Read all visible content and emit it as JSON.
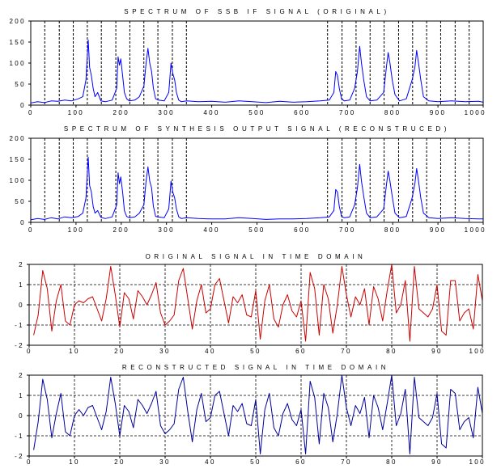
{
  "chart_data": [
    {
      "type": "line",
      "title": "SPECTRUM OF SSB IF SIGNAL (ORIGINAL)",
      "xlim": [
        0,
        1000
      ],
      "ylim": [
        0,
        200
      ],
      "xticks": [
        "0",
        "100",
        "200",
        "300",
        "400",
        "500",
        "600",
        "700",
        "800",
        "900",
        "1000"
      ],
      "yticks": [
        "0",
        "50",
        "100",
        "150",
        "200"
      ],
      "dividers": [
        31,
        63,
        94,
        125,
        156,
        188,
        219,
        250,
        281,
        313,
        344,
        656,
        688,
        719,
        750,
        781,
        813,
        844,
        875,
        906,
        938,
        969
      ],
      "line_color": "#0000ff",
      "x": [
        0,
        15,
        30,
        45,
        60,
        75,
        90,
        105,
        115,
        122,
        127,
        130,
        134,
        138,
        142,
        148,
        155,
        165,
        180,
        190,
        193,
        196,
        199,
        203,
        207,
        212,
        218,
        230,
        240,
        250,
        255,
        259,
        263,
        267,
        271,
        276,
        282,
        295,
        305,
        310,
        314,
        318,
        322,
        327,
        333,
        345,
        370,
        400,
        430,
        460,
        490,
        520,
        550,
        580,
        610,
        640,
        660,
        670,
        674,
        678,
        682,
        687,
        693,
        705,
        716,
        722,
        727,
        731,
        736,
        742,
        750,
        765,
        780,
        786,
        790,
        794,
        799,
        805,
        815,
        830,
        843,
        849,
        853,
        857,
        862,
        868,
        880,
        900,
        930,
        960,
        990,
        1000
      ],
      "y": [
        5,
        8,
        6,
        10,
        9,
        12,
        10,
        15,
        20,
        60,
        155,
        90,
        70,
        40,
        20,
        30,
        10,
        8,
        12,
        40,
        115,
        95,
        110,
        70,
        30,
        15,
        10,
        12,
        20,
        45,
        100,
        135,
        100,
        80,
        40,
        15,
        12,
        10,
        30,
        100,
        75,
        60,
        30,
        12,
        8,
        10,
        8,
        9,
        7,
        10,
        8,
        6,
        9,
        7,
        8,
        10,
        12,
        30,
        80,
        70,
        40,
        15,
        10,
        12,
        40,
        80,
        140,
        100,
        60,
        20,
        10,
        12,
        30,
        90,
        125,
        100,
        60,
        25,
        10,
        15,
        60,
        90,
        130,
        100,
        60,
        20,
        10,
        8,
        10,
        8,
        9,
        7
      ]
    },
    {
      "type": "line",
      "title": "SPECTRUM OF SYNTHESIS OUTPUT SIGNAL (RECONSTRUCED)",
      "xlim": [
        0,
        1000
      ],
      "ylim": [
        0,
        200
      ],
      "xticks": [
        "0",
        "100",
        "200",
        "300",
        "400",
        "500",
        "600",
        "700",
        "800",
        "900",
        "1000"
      ],
      "yticks": [
        "0",
        "50",
        "100",
        "150",
        "200"
      ],
      "dividers": [
        31,
        63,
        94,
        125,
        156,
        188,
        219,
        250,
        281,
        313,
        344,
        656,
        688,
        719,
        750,
        781,
        813,
        844,
        875,
        906,
        938,
        969
      ],
      "line_color": "#0000ff",
      "x": [
        0,
        15,
        30,
        45,
        60,
        75,
        90,
        105,
        115,
        122,
        127,
        130,
        134,
        138,
        142,
        148,
        155,
        165,
        180,
        190,
        193,
        196,
        199,
        203,
        207,
        212,
        218,
        230,
        240,
        250,
        255,
        259,
        263,
        267,
        271,
        276,
        282,
        295,
        305,
        310,
        314,
        318,
        322,
        327,
        333,
        345,
        370,
        400,
        430,
        460,
        490,
        520,
        550,
        580,
        610,
        640,
        660,
        670,
        674,
        678,
        682,
        687,
        693,
        705,
        716,
        722,
        727,
        731,
        736,
        742,
        750,
        765,
        780,
        786,
        790,
        794,
        799,
        805,
        815,
        830,
        843,
        849,
        853,
        857,
        862,
        868,
        880,
        900,
        930,
        960,
        990,
        1000
      ],
      "y": [
        6,
        9,
        7,
        11,
        8,
        13,
        11,
        14,
        22,
        58,
        155,
        88,
        72,
        38,
        22,
        28,
        12,
        9,
        13,
        42,
        118,
        92,
        108,
        72,
        28,
        14,
        11,
        13,
        22,
        42,
        98,
        132,
        98,
        82,
        38,
        14,
        13,
        11,
        32,
        98,
        72,
        58,
        32,
        13,
        9,
        11,
        9,
        8,
        8,
        11,
        9,
        7,
        8,
        8,
        9,
        11,
        13,
        28,
        78,
        72,
        38,
        14,
        11,
        13,
        42,
        82,
        138,
        98,
        62,
        22,
        11,
        13,
        32,
        88,
        122,
        98,
        62,
        22,
        11,
        14,
        58,
        92,
        128,
        98,
        58,
        22,
        11,
        9,
        11,
        9,
        8,
        8
      ]
    },
    {
      "type": "line",
      "title": "ORIGINAL SIGNAL IN TIME DOMAIN",
      "xlim": [
        0,
        100
      ],
      "ylim": [
        -2,
        2
      ],
      "xticks": [
        "0",
        "10",
        "20",
        "30",
        "40",
        "50",
        "60",
        "70",
        "80",
        "90",
        "100"
      ],
      "yticks": [
        "-2",
        "-1",
        "0",
        "1",
        "2"
      ],
      "grid": true,
      "line_color": "#cc0000",
      "x": [
        1,
        2,
        3,
        4,
        5,
        6,
        7,
        8,
        9,
        10,
        11,
        12,
        13,
        14,
        15,
        16,
        17,
        18,
        19,
        20,
        21,
        22,
        23,
        24,
        25,
        26,
        27,
        28,
        29,
        30,
        31,
        32,
        33,
        34,
        35,
        36,
        37,
        38,
        39,
        40,
        41,
        42,
        43,
        44,
        45,
        46,
        47,
        48,
        49,
        50,
        51,
        52,
        53,
        54,
        55,
        56,
        57,
        58,
        59,
        60,
        61,
        62,
        63,
        64,
        65,
        66,
        67,
        68,
        69,
        70,
        71,
        72,
        73,
        74,
        75,
        76,
        77,
        78,
        79,
        80,
        81,
        82,
        83,
        84,
        85,
        86,
        87,
        88,
        89,
        90,
        91,
        92,
        93,
        94,
        95,
        96,
        97,
        98,
        99,
        100
      ],
      "y": [
        -1.5,
        -0.5,
        1.7,
        0.8,
        -1.3,
        0.2,
        1.0,
        -0.8,
        -1.0,
        0.0,
        0.2,
        0.1,
        0.3,
        0.4,
        -0.2,
        -0.8,
        0.3,
        1.9,
        0.5,
        -1.1,
        0.6,
        0.3,
        -0.7,
        0.7,
        0.4,
        0.0,
        0.5,
        1.1,
        -0.4,
        -1.0,
        -0.8,
        -0.5,
        1.2,
        1.8,
        0.3,
        -1.2,
        0.2,
        1.0,
        -0.4,
        -0.2,
        1.0,
        1.3,
        0.2,
        -0.9,
        0.4,
        0.1,
        0.5,
        -0.5,
        -0.6,
        0.7,
        -1.7,
        0.2,
        1.0,
        -0.7,
        -1.1,
        0.0,
        0.5,
        -0.3,
        -0.6,
        0.2,
        -1.8,
        1.6,
        0.8,
        -1.5,
        1.0,
        0.3,
        -1.4,
        0.0,
        1.9,
        0.5,
        -0.6,
        0.4,
        0.0,
        0.8,
        -1.0,
        0.9,
        0.3,
        -0.8,
        0.7,
        2.0,
        -0.4,
        0.0,
        1.2,
        -1.8,
        1.9,
        -0.2,
        -0.4,
        -0.6,
        -0.2,
        1.0,
        -1.3,
        -1.5,
        1.2,
        1.2,
        -0.8,
        -0.4,
        -0.2,
        -1.2,
        1.5,
        0.2
      ]
    },
    {
      "type": "line",
      "title": "RECONSTRUCTED SIGNAL IN TIME DOMAIN",
      "xlim": [
        0,
        100
      ],
      "ylim": [
        -2,
        2
      ],
      "xticks": [
        "0",
        "10",
        "20",
        "30",
        "40",
        "50",
        "60",
        "70",
        "80",
        "90",
        "100"
      ],
      "yticks": [
        "-2",
        "-1",
        "0",
        "1",
        "2"
      ],
      "grid": true,
      "line_color": "#00009c",
      "x": [
        1,
        2,
        3,
        4,
        5,
        6,
        7,
        8,
        9,
        10,
        11,
        12,
        13,
        14,
        15,
        16,
        17,
        18,
        19,
        20,
        21,
        22,
        23,
        24,
        25,
        26,
        27,
        28,
        29,
        30,
        31,
        32,
        33,
        34,
        35,
        36,
        37,
        38,
        39,
        40,
        41,
        42,
        43,
        44,
        45,
        46,
        47,
        48,
        49,
        50,
        51,
        52,
        53,
        54,
        55,
        56,
        57,
        58,
        59,
        60,
        61,
        62,
        63,
        64,
        65,
        66,
        67,
        68,
        69,
        70,
        71,
        72,
        73,
        74,
        75,
        76,
        77,
        78,
        79,
        80,
        81,
        82,
        83,
        84,
        85,
        86,
        87,
        88,
        89,
        90,
        91,
        92,
        93,
        94,
        95,
        96,
        97,
        98,
        99,
        100
      ],
      "y": [
        -1.7,
        -0.3,
        1.8,
        0.8,
        -1.1,
        0.1,
        1.1,
        -0.8,
        -1.0,
        0.0,
        0.3,
        0.0,
        0.4,
        0.5,
        -0.1,
        -0.7,
        0.2,
        1.9,
        0.6,
        -1.0,
        0.5,
        0.2,
        -0.6,
        0.8,
        0.5,
        0.1,
        0.6,
        1.2,
        -0.5,
        -0.9,
        -0.7,
        -0.4,
        1.3,
        1.9,
        0.2,
        -1.3,
        0.3,
        1.1,
        -0.3,
        -0.1,
        1.0,
        1.2,
        0.1,
        -1.0,
        0.5,
        0.2,
        0.6,
        -0.4,
        -0.5,
        0.8,
        -1.9,
        0.3,
        1.1,
        -0.6,
        -1.0,
        0.1,
        0.6,
        -0.2,
        -0.5,
        0.3,
        -1.9,
        1.7,
        0.9,
        -1.4,
        1.1,
        0.4,
        -1.3,
        0.1,
        2.0,
        0.4,
        -0.5,
        0.5,
        0.1,
        0.9,
        -1.1,
        1.0,
        0.4,
        -0.7,
        0.6,
        2.0,
        -0.5,
        0.1,
        1.3,
        -1.9,
        1.9,
        -0.1,
        -0.3,
        -0.5,
        -0.1,
        1.1,
        -1.4,
        -1.6,
        1.3,
        1.1,
        -0.7,
        -0.3,
        -0.1,
        -1.1,
        1.4,
        0.1
      ]
    }
  ]
}
